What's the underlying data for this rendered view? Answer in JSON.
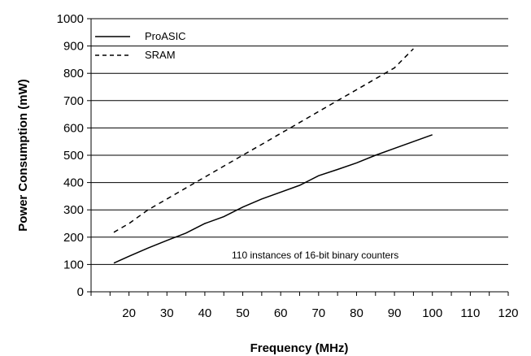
{
  "chart_data": {
    "type": "line",
    "xlabel": "Frequency (MHz)",
    "ylabel": "Power Consumption (mW)",
    "xlim": [
      10,
      120
    ],
    "ylim": [
      0,
      1000
    ],
    "x_ticks": [
      20,
      30,
      40,
      50,
      60,
      70,
      80,
      90,
      100,
      110,
      120
    ],
    "y_ticks": [
      0,
      100,
      200,
      300,
      400,
      500,
      600,
      700,
      800,
      900,
      1000
    ],
    "grid": "horizontal",
    "legend_position": "top-left",
    "annotation": "110 instances of 16-bit binary counters",
    "series": [
      {
        "name": "ProASIC",
        "style": "solid",
        "color": "#000000",
        "x": [
          16,
          20,
          25,
          30,
          35,
          40,
          45,
          50,
          55,
          60,
          65,
          70,
          75,
          80,
          85,
          90,
          95,
          100
        ],
        "y": [
          105,
          130,
          160,
          188,
          215,
          250,
          275,
          310,
          340,
          365,
          390,
          425,
          448,
          472,
          500,
          525,
          550,
          575
        ]
      },
      {
        "name": "SRAM",
        "style": "dashed",
        "color": "#000000",
        "x": [
          16,
          20,
          25,
          30,
          35,
          40,
          45,
          50,
          55,
          60,
          65,
          70,
          75,
          80,
          85,
          90,
          95
        ],
        "y": [
          218,
          250,
          300,
          340,
          380,
          420,
          460,
          500,
          540,
          580,
          620,
          660,
          700,
          740,
          780,
          820,
          890
        ]
      }
    ]
  }
}
